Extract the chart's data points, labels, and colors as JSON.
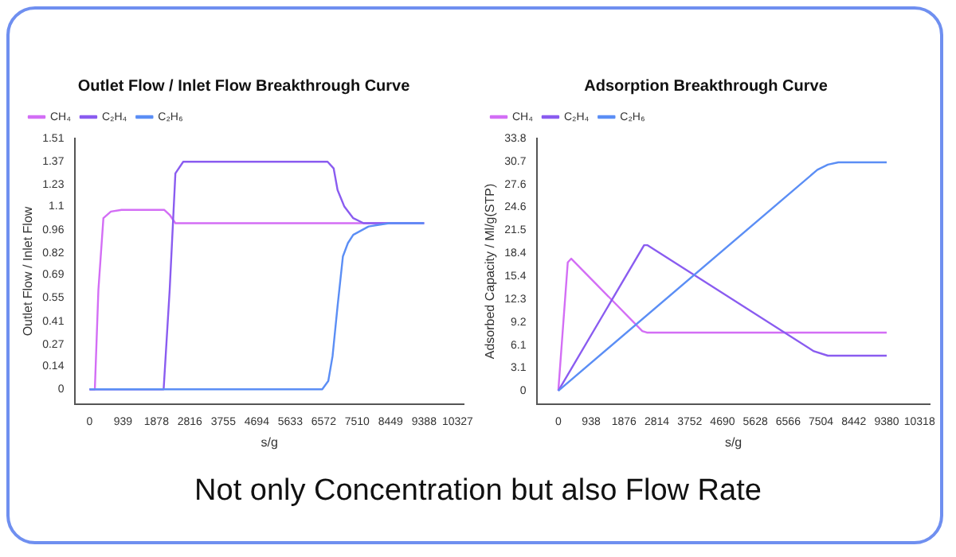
{
  "chart_data": [
    {
      "type": "line",
      "title": "Outlet Flow / Inlet Flow Breakthrough Curve",
      "xlabel": "s/g",
      "ylabel": "Outlet Flow / Inlet Flow",
      "xlim": [
        -400,
        10500
      ],
      "xticks": [
        0,
        939,
        1878,
        2816,
        3755,
        4694,
        5633,
        6572,
        7510,
        8449,
        9388,
        10327
      ],
      "ylim": [
        -0.09,
        1.51
      ],
      "yticks": [
        0.0,
        0.14,
        0.27,
        0.41,
        0.55,
        0.69,
        0.82,
        0.96,
        1.1,
        1.23,
        1.37,
        1.51
      ],
      "grid": false,
      "legend": "top left",
      "marker": "none",
      "line_style": "solid",
      "annotations": [
        "Not only Concentration but also Flow Rate"
      ],
      "series": [
        {
          "name": "CH₄",
          "color": "#d36ef5",
          "x": [
            0,
            150,
            250,
            390,
            600,
            900,
            2100,
            2250,
            2410,
            2600,
            9388
          ],
          "values": [
            0,
            0,
            0.6,
            1.03,
            1.07,
            1.08,
            1.08,
            1.05,
            1.0,
            1.0,
            1.0
          ]
        },
        {
          "name": "C₂H₄",
          "color": "#8a5cf0",
          "x": [
            0,
            2080,
            2250,
            2410,
            2630,
            6680,
            6850,
            6960,
            7150,
            7400,
            7690,
            9388
          ],
          "values": [
            0,
            0,
            0.6,
            1.3,
            1.37,
            1.37,
            1.33,
            1.2,
            1.1,
            1.03,
            1.0,
            1.0
          ]
        },
        {
          "name": "C₂H₆",
          "color": "#5b8ef5",
          "x": [
            0,
            6530,
            6700,
            6820,
            6960,
            7110,
            7250,
            7400,
            7830,
            8410,
            9388
          ],
          "values": [
            0,
            0,
            0.05,
            0.2,
            0.5,
            0.8,
            0.88,
            0.93,
            0.98,
            1.0,
            1.0
          ]
        }
      ]
    },
    {
      "type": "line",
      "title": "Adsorption Breakthrough Curve",
      "xlabel": "s/g",
      "ylabel": "Adsorbed Capacity / Ml/g(STP)",
      "xlim": [
        -600,
        10600
      ],
      "xticks": [
        0,
        938,
        1876,
        2814,
        3752,
        4690,
        5628,
        6566,
        7504,
        8442,
        9380,
        10318
      ],
      "ylim": [
        -1.8,
        33.8
      ],
      "yticks": [
        0.0,
        3.1,
        6.1,
        9.2,
        12.3,
        15.4,
        18.4,
        21.5,
        24.6,
        27.6,
        30.7,
        33.8
      ],
      "grid": false,
      "legend": "top left",
      "marker": "none",
      "line_style": "solid",
      "series": [
        {
          "name": "CH₄",
          "color": "#d36ef5",
          "x": [
            0,
            270,
            370,
            2400,
            2530,
            9380
          ],
          "values": [
            0,
            17.2,
            17.7,
            8.0,
            7.8,
            7.8
          ]
        },
        {
          "name": "C₂H₄",
          "color": "#8a5cf0",
          "x": [
            0,
            2450,
            2550,
            7300,
            7700,
            9380
          ],
          "values": [
            0,
            19.5,
            19.5,
            5.3,
            4.7,
            4.7
          ]
        },
        {
          "name": "C₂H₆",
          "color": "#5b8ef5",
          "x": [
            0,
            7400,
            7700,
            8000,
            9380
          ],
          "values": [
            0,
            29.6,
            30.3,
            30.6,
            30.6
          ]
        }
      ]
    }
  ]
}
